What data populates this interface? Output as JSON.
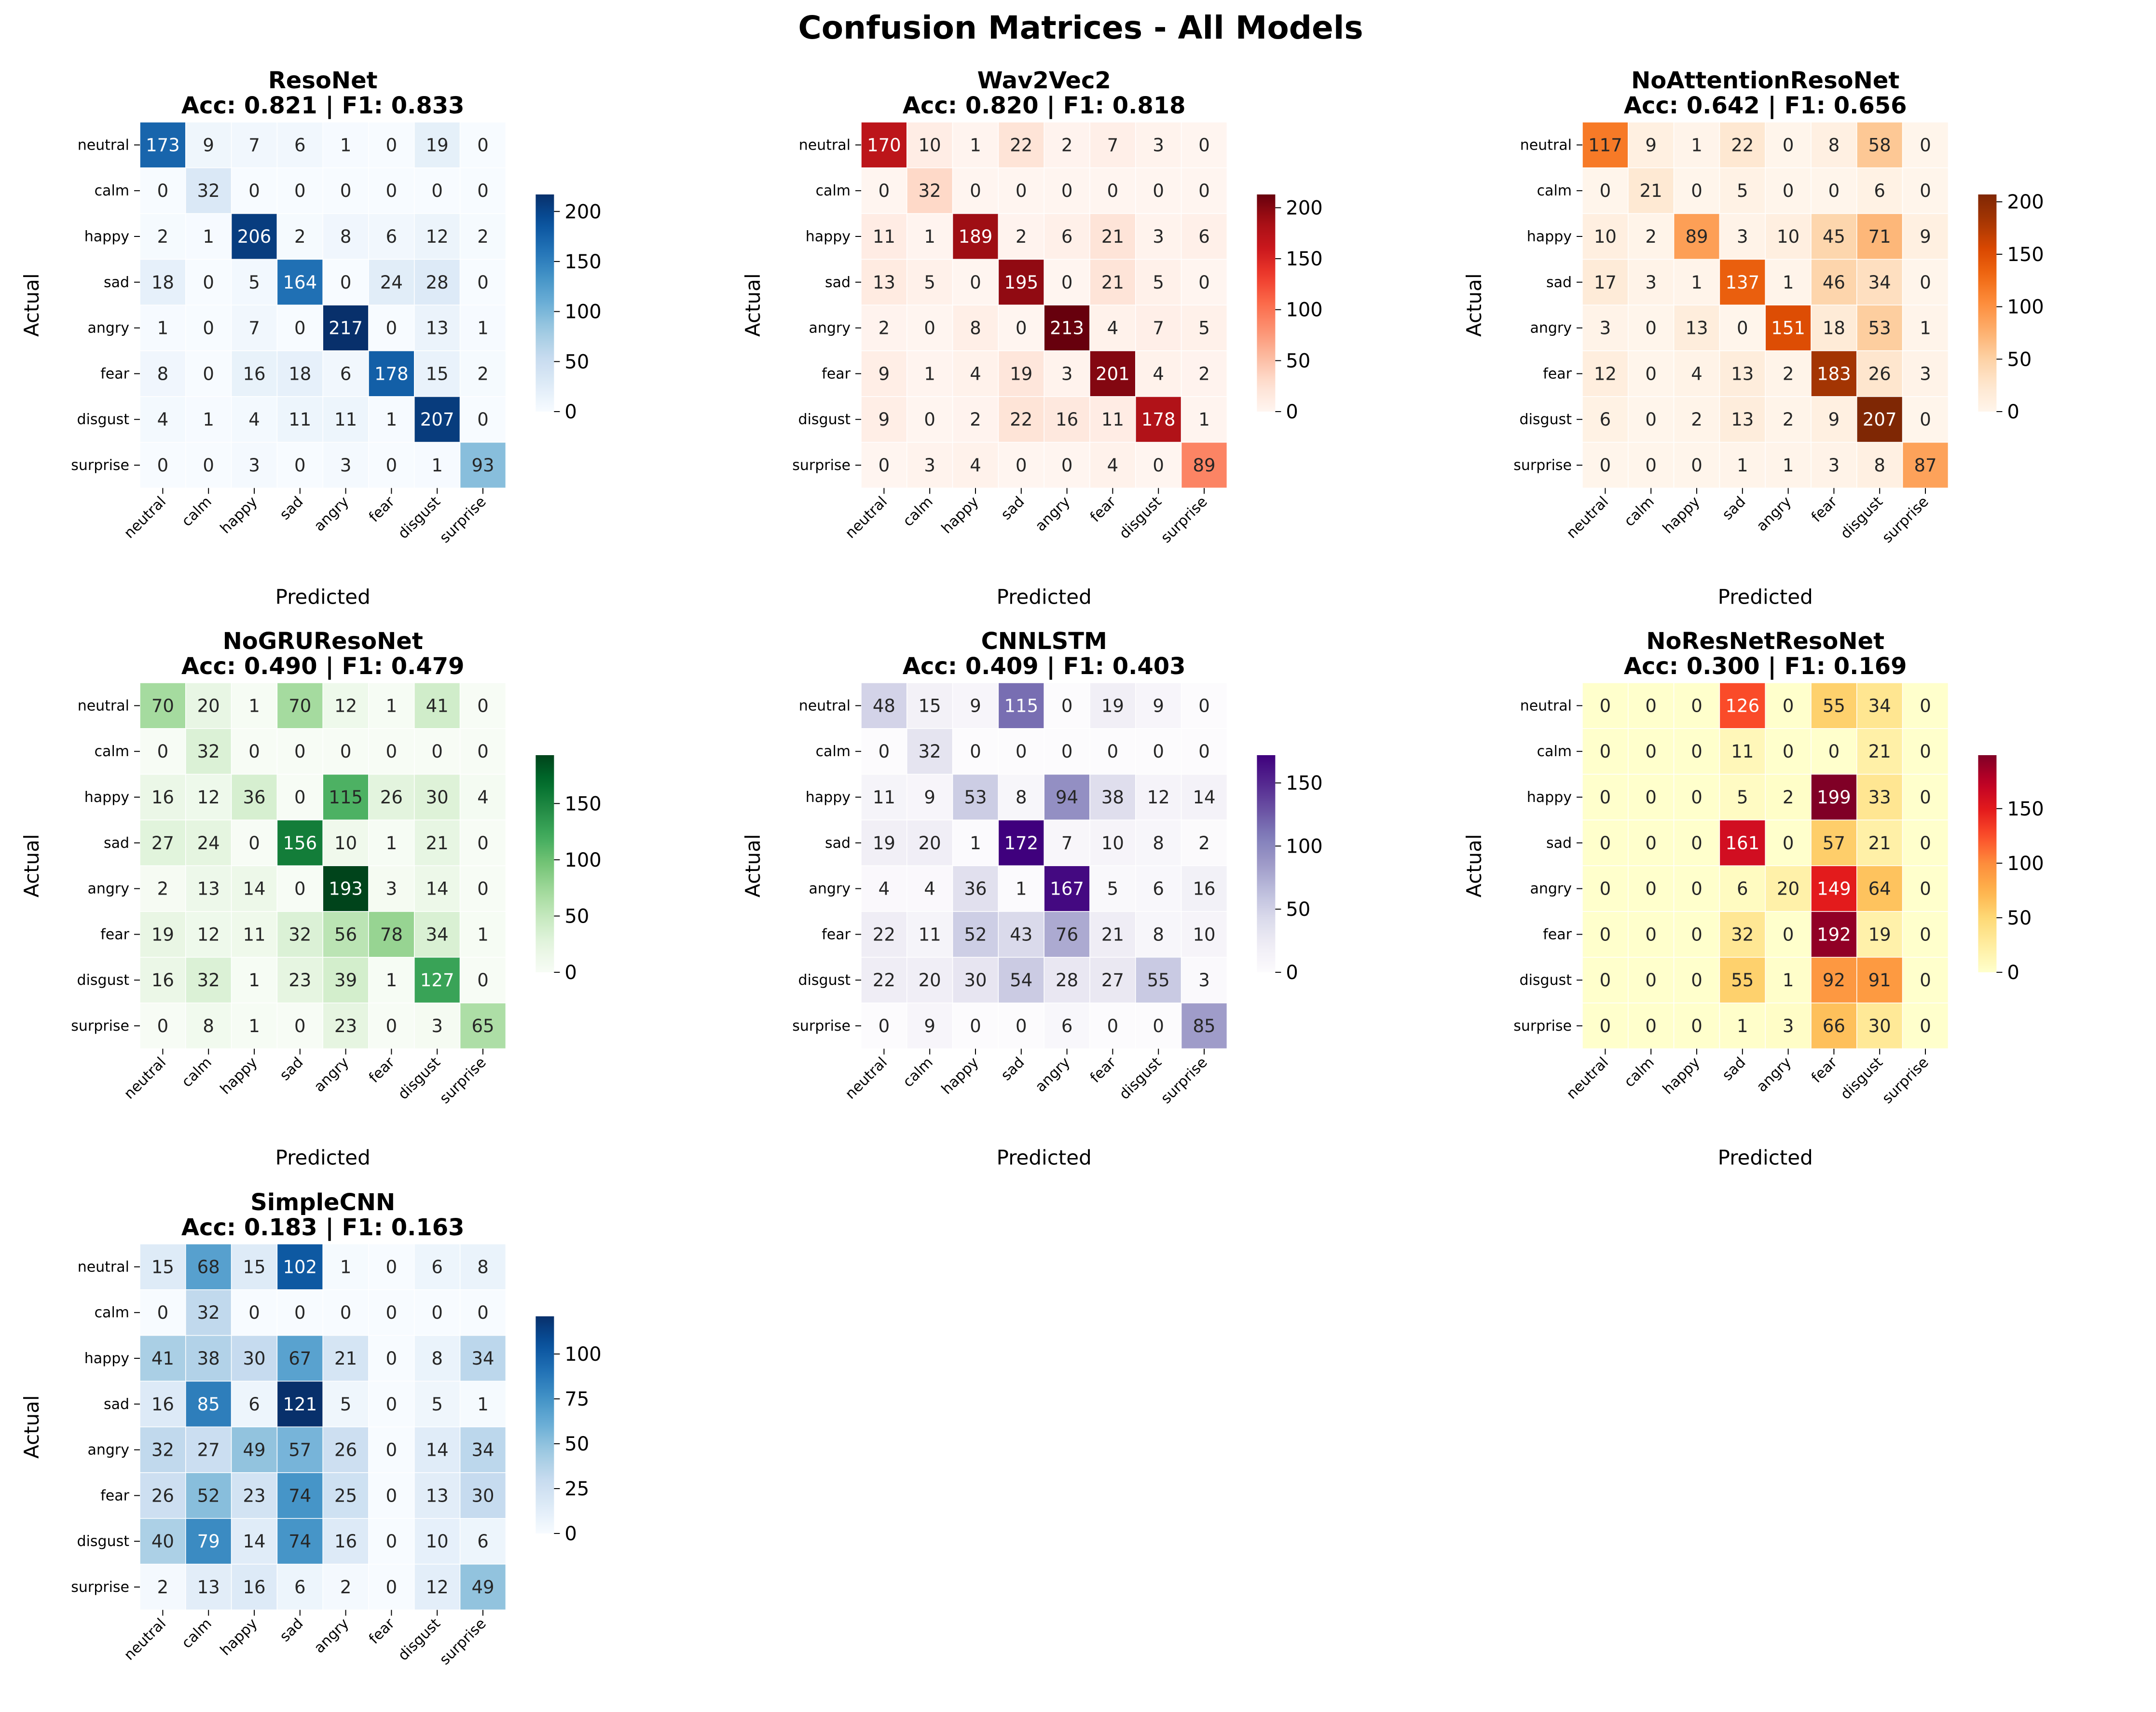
{
  "figure_title": "Confusion Matrices - All Models",
  "axis_labels": {
    "x": "Predicted",
    "y": "Actual"
  },
  "classes": [
    "neutral",
    "calm",
    "happy",
    "sad",
    "angry",
    "fear",
    "disgust",
    "surprise"
  ],
  "chart_data": [
    {
      "type": "heatmap",
      "model": "ResoNet",
      "metrics": "Acc: 0.821 | F1: 0.833",
      "colormap": "Blues",
      "vmin": 0,
      "vmax": 217,
      "colorbar_ticks": [
        0,
        50,
        100,
        150,
        200
      ],
      "matrix": [
        [
          173,
          9,
          7,
          6,
          1,
          0,
          19,
          0
        ],
        [
          0,
          32,
          0,
          0,
          0,
          0,
          0,
          0
        ],
        [
          2,
          1,
          206,
          2,
          8,
          6,
          12,
          2
        ],
        [
          18,
          0,
          5,
          164,
          0,
          24,
          28,
          0
        ],
        [
          1,
          0,
          7,
          0,
          217,
          0,
          13,
          1
        ],
        [
          8,
          0,
          16,
          18,
          6,
          178,
          15,
          2
        ],
        [
          4,
          1,
          4,
          11,
          11,
          1,
          207,
          0
        ],
        [
          0,
          0,
          3,
          0,
          3,
          0,
          1,
          93
        ]
      ]
    },
    {
      "type": "heatmap",
      "model": "Wav2Vec2",
      "metrics": "Acc: 0.820 | F1: 0.818",
      "colormap": "Reds",
      "vmin": 0,
      "vmax": 213,
      "colorbar_ticks": [
        0,
        50,
        100,
        150,
        200
      ],
      "matrix": [
        [
          170,
          10,
          1,
          22,
          2,
          7,
          3,
          0
        ],
        [
          0,
          32,
          0,
          0,
          0,
          0,
          0,
          0
        ],
        [
          11,
          1,
          189,
          2,
          6,
          21,
          3,
          6
        ],
        [
          13,
          5,
          0,
          195,
          0,
          21,
          5,
          0
        ],
        [
          2,
          0,
          8,
          0,
          213,
          4,
          7,
          5
        ],
        [
          9,
          1,
          4,
          19,
          3,
          201,
          4,
          2
        ],
        [
          9,
          0,
          2,
          22,
          16,
          11,
          178,
          1
        ],
        [
          0,
          3,
          4,
          0,
          0,
          4,
          0,
          89
        ]
      ]
    },
    {
      "type": "heatmap",
      "model": "NoAttentionResoNet",
      "metrics": "Acc: 0.642 | F1: 0.656",
      "colormap": "Oranges",
      "vmin": 0,
      "vmax": 207,
      "colorbar_ticks": [
        0,
        50,
        100,
        150,
        200
      ],
      "matrix": [
        [
          117,
          9,
          1,
          22,
          0,
          8,
          58,
          0
        ],
        [
          0,
          21,
          0,
          5,
          0,
          0,
          6,
          0
        ],
        [
          10,
          2,
          89,
          3,
          10,
          45,
          71,
          9
        ],
        [
          17,
          3,
          1,
          137,
          1,
          46,
          34,
          0
        ],
        [
          3,
          0,
          13,
          0,
          151,
          18,
          53,
          1
        ],
        [
          12,
          0,
          4,
          13,
          2,
          183,
          26,
          3
        ],
        [
          6,
          0,
          2,
          13,
          2,
          9,
          207,
          0
        ],
        [
          0,
          0,
          0,
          1,
          1,
          3,
          8,
          87
        ]
      ]
    },
    {
      "type": "heatmap",
      "model": "NoGRUResoNet",
      "metrics": "Acc: 0.490 | F1: 0.479",
      "colormap": "Greens",
      "vmin": 0,
      "vmax": 193,
      "colorbar_ticks": [
        0,
        50,
        100,
        150
      ],
      "matrix": [
        [
          70,
          20,
          1,
          70,
          12,
          1,
          41,
          0
        ],
        [
          0,
          32,
          0,
          0,
          0,
          0,
          0,
          0
        ],
        [
          16,
          12,
          36,
          0,
          115,
          26,
          30,
          4
        ],
        [
          27,
          24,
          0,
          156,
          10,
          1,
          21,
          0
        ],
        [
          2,
          13,
          14,
          0,
          193,
          3,
          14,
          0
        ],
        [
          19,
          12,
          11,
          32,
          56,
          78,
          34,
          1
        ],
        [
          16,
          32,
          1,
          23,
          39,
          1,
          127,
          0
        ],
        [
          0,
          8,
          1,
          0,
          23,
          0,
          3,
          65
        ]
      ]
    },
    {
      "type": "heatmap",
      "model": "CNNLSTM",
      "metrics": "Acc: 0.409 | F1: 0.403",
      "colormap": "Purples",
      "vmin": 0,
      "vmax": 172,
      "colorbar_ticks": [
        0,
        50,
        100,
        150
      ],
      "matrix": [
        [
          48,
          15,
          9,
          115,
          0,
          19,
          9,
          0
        ],
        [
          0,
          32,
          0,
          0,
          0,
          0,
          0,
          0
        ],
        [
          11,
          9,
          53,
          8,
          94,
          38,
          12,
          14
        ],
        [
          19,
          20,
          1,
          172,
          7,
          10,
          8,
          2
        ],
        [
          4,
          4,
          36,
          1,
          167,
          5,
          6,
          16
        ],
        [
          22,
          11,
          52,
          43,
          76,
          21,
          8,
          10
        ],
        [
          22,
          20,
          30,
          54,
          28,
          27,
          55,
          3
        ],
        [
          0,
          9,
          0,
          0,
          6,
          0,
          0,
          85
        ]
      ]
    },
    {
      "type": "heatmap",
      "model": "NoResNetResoNet",
      "metrics": "Acc: 0.300 | F1: 0.169",
      "colormap": "YlOrRd",
      "vmin": 0,
      "vmax": 199,
      "colorbar_ticks": [
        0,
        50,
        100,
        150
      ],
      "matrix": [
        [
          0,
          0,
          0,
          126,
          0,
          55,
          34,
          0
        ],
        [
          0,
          0,
          0,
          11,
          0,
          0,
          21,
          0
        ],
        [
          0,
          0,
          0,
          5,
          2,
          199,
          33,
          0
        ],
        [
          0,
          0,
          0,
          161,
          0,
          57,
          21,
          0
        ],
        [
          0,
          0,
          0,
          6,
          20,
          149,
          64,
          0
        ],
        [
          0,
          0,
          0,
          32,
          0,
          192,
          19,
          0
        ],
        [
          0,
          0,
          0,
          55,
          1,
          92,
          91,
          0
        ],
        [
          0,
          0,
          0,
          1,
          3,
          66,
          30,
          0
        ]
      ]
    },
    {
      "type": "heatmap",
      "model": "SimpleCNN",
      "metrics": "Acc: 0.183 | F1: 0.163",
      "colormap": "Blues",
      "vmin": 0,
      "vmax": 121,
      "colorbar_ticks": [
        0,
        25,
        50,
        75,
        100
      ],
      "matrix": [
        [
          15,
          68,
          15,
          102,
          1,
          0,
          6,
          8
        ],
        [
          0,
          32,
          0,
          0,
          0,
          0,
          0,
          0
        ],
        [
          41,
          38,
          30,
          67,
          21,
          0,
          8,
          34
        ],
        [
          16,
          85,
          6,
          121,
          5,
          0,
          5,
          1
        ],
        [
          32,
          27,
          49,
          57,
          26,
          0,
          14,
          34
        ],
        [
          26,
          52,
          23,
          74,
          25,
          0,
          13,
          30
        ],
        [
          40,
          79,
          14,
          74,
          16,
          0,
          10,
          6
        ],
        [
          2,
          13,
          16,
          6,
          2,
          0,
          12,
          49
        ]
      ]
    }
  ]
}
